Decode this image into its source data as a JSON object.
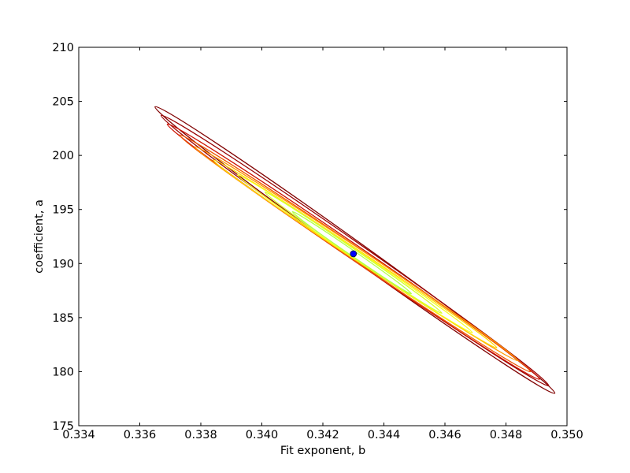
{
  "chart_data": {
    "type": "contour",
    "title": "",
    "xlabel": "Fit exponent, b",
    "ylabel": "coefficient, a",
    "xlim": [
      0.334,
      0.35
    ],
    "ylim": [
      175,
      210
    ],
    "x_ticks": [
      "0.334",
      "0.336",
      "0.338",
      "0.340",
      "0.342",
      "0.344",
      "0.346",
      "0.348",
      "0.350"
    ],
    "y_ticks": [
      "175",
      "180",
      "185",
      "190",
      "195",
      "200",
      "205",
      "210"
    ],
    "grid": false,
    "legend": "none",
    "best_fit_point": {
      "x": 0.343,
      "y": 190.9,
      "color": "#0000ff"
    },
    "contours": [
      {
        "level": 1,
        "color": "#b0ff4a",
        "ends": [
          [
            0.341,
            194.8
          ],
          [
            0.3449,
            187.2
          ]
        ]
      },
      {
        "level": 2,
        "color": "#d6ff2a",
        "ends": [
          [
            0.3401,
            196.6
          ],
          [
            0.3459,
            185.4
          ]
        ]
      },
      {
        "level": 3,
        "color": "#f5ff20",
        "ends": [
          [
            0.3392,
            198.2
          ],
          [
            0.3469,
            183.6
          ]
        ]
      },
      {
        "level": 4,
        "color": "#ffd800",
        "ends": [
          [
            0.3384,
            199.6
          ],
          [
            0.3477,
            182.2
          ]
        ]
      },
      {
        "level": 5,
        "color": "#ff9900",
        "ends": [
          [
            0.3378,
            200.8
          ],
          [
            0.3484,
            181.0
          ]
        ]
      },
      {
        "level": 6,
        "color": "#ee5500",
        "ends": [
          [
            0.3373,
            201.9
          ],
          [
            0.3488,
            180.0
          ]
        ]
      },
      {
        "level": 7,
        "color": "#cc1100",
        "ends": [
          [
            0.3369,
            202.9
          ],
          [
            0.3491,
            179.3
          ]
        ]
      },
      {
        "level": 8,
        "color": "#990000",
        "ends": [
          [
            0.3367,
            203.7
          ],
          [
            0.3494,
            178.7
          ]
        ]
      },
      {
        "level": 9,
        "color": "#800000",
        "ends": [
          [
            0.3365,
            204.5
          ],
          [
            0.3496,
            178.0
          ]
        ]
      }
    ]
  }
}
